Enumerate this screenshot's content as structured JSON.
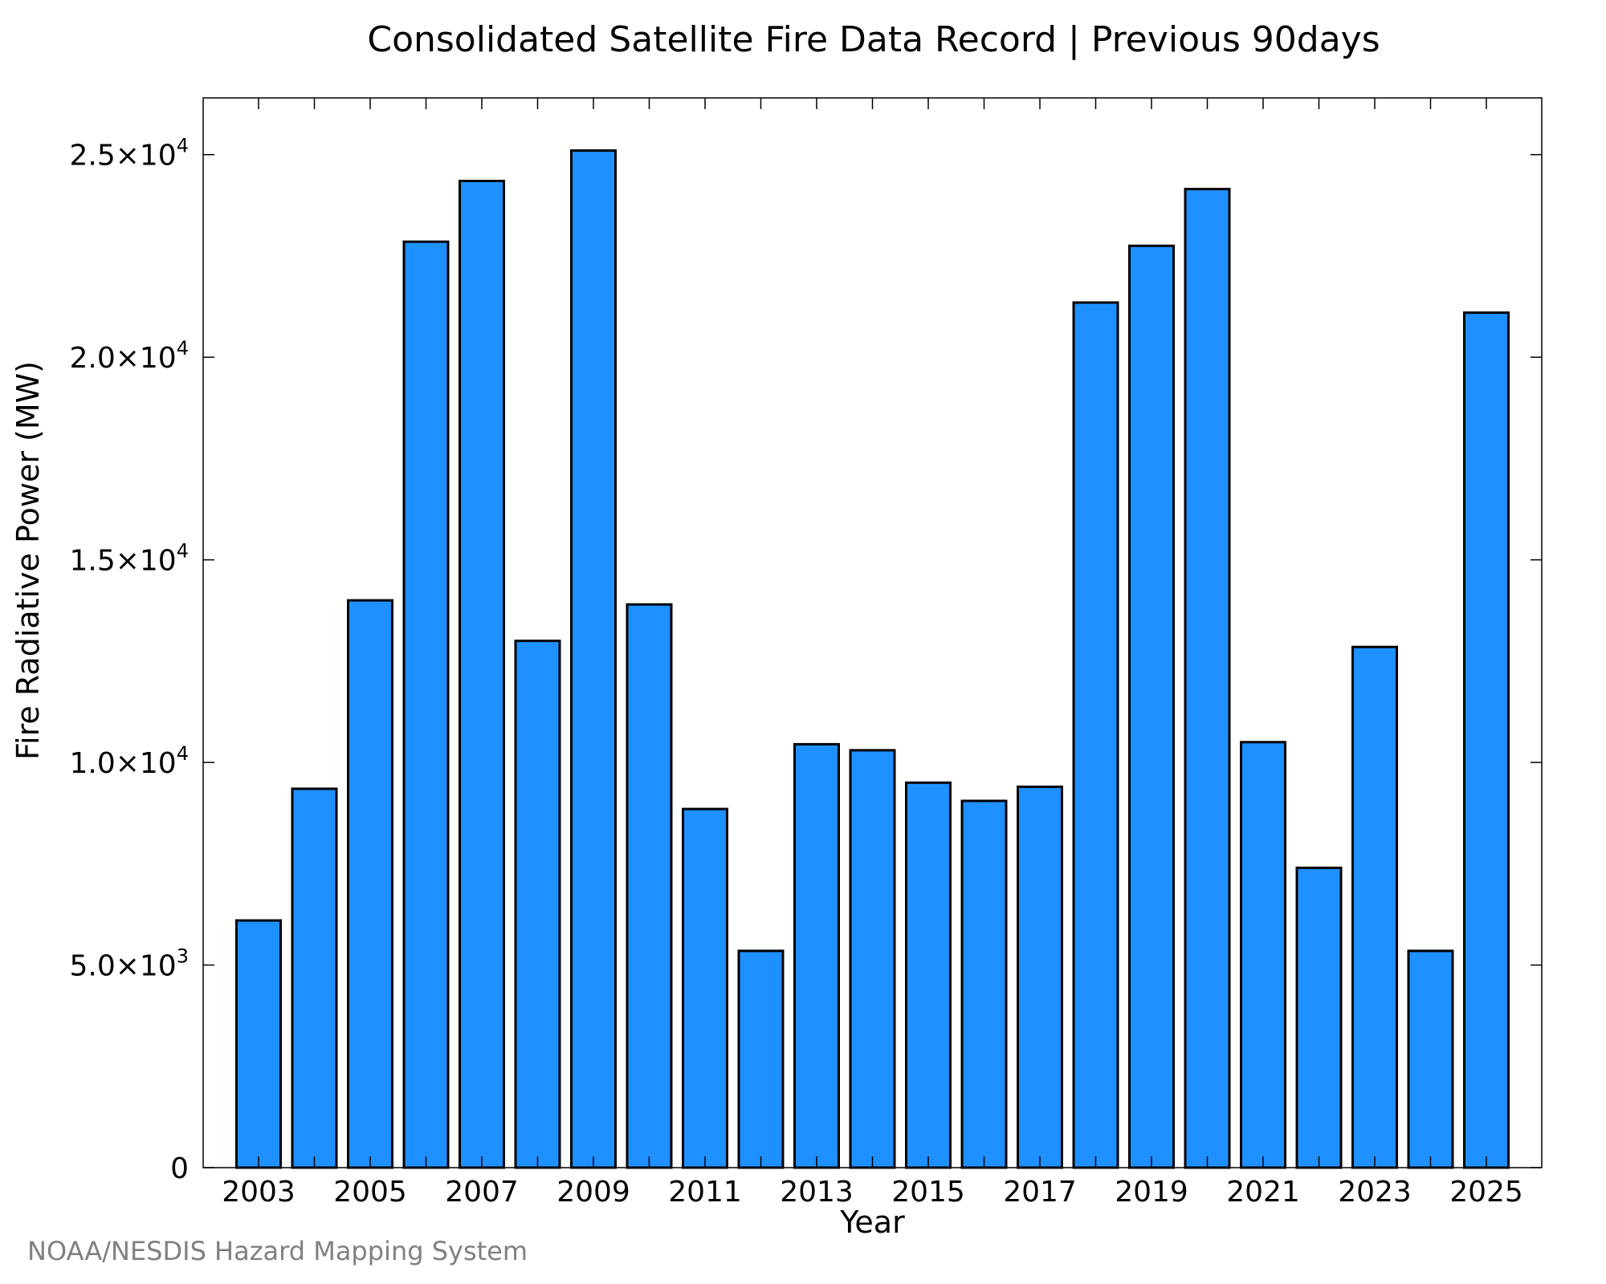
{
  "chart_data": {
    "type": "bar",
    "title": "Consolidated Satellite Fire Data Record | Previous 90days",
    "xlabel": "Year",
    "ylabel": "Fire Radiative Power (MW)",
    "categories": [
      "2003",
      "2004",
      "2005",
      "2006",
      "2007",
      "2008",
      "2009",
      "2010",
      "2011",
      "2012",
      "2013",
      "2014",
      "2015",
      "2016",
      "2017",
      "2018",
      "2019",
      "2020",
      "2021",
      "2022",
      "2023",
      "2024",
      "2025"
    ],
    "values": [
      6100,
      9350,
      14000,
      22850,
      24350,
      13000,
      25100,
      13900,
      8850,
      5350,
      10450,
      10300,
      9500,
      9050,
      9400,
      21350,
      22750,
      24150,
      10500,
      7400,
      12850,
      5350,
      21100
    ],
    "ylim": [
      0,
      26400
    ],
    "y_ticks": [
      {
        "value": 0,
        "mantissa": "0",
        "exponent": ""
      },
      {
        "value": 5000,
        "mantissa": "5.0×10",
        "exponent": "3"
      },
      {
        "value": 10000,
        "mantissa": "1.0×10",
        "exponent": "4"
      },
      {
        "value": 15000,
        "mantissa": "1.5×10",
        "exponent": "4"
      },
      {
        "value": 20000,
        "mantissa": "2.0×10",
        "exponent": "4"
      },
      {
        "value": 25000,
        "mantissa": "2.5×10",
        "exponent": "4"
      }
    ],
    "x_tick_labels": [
      "2003",
      "2005",
      "2007",
      "2009",
      "2011",
      "2013",
      "2015",
      "2017",
      "2019",
      "2021",
      "2023",
      "2025"
    ],
    "bar_color": "#1E90FF",
    "bar_edge_color": "#000000",
    "grid": false,
    "legend": "none"
  },
  "credit": "NOAA/NESDIS Hazard Mapping System"
}
